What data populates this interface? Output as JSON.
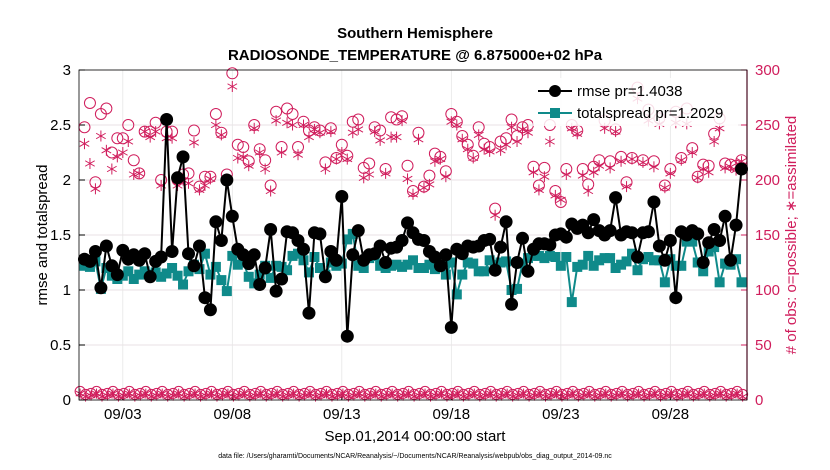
{
  "chart_data": {
    "type": "line",
    "title_line1": "Southern Hemisphere",
    "title_line2": "RADIOSONDE_TEMPERATURE @ 6.875000e+02 hPa",
    "xlabel": "Sep.01,2014 00:00:00 start",
    "ylabel_left": "rmse and totalspread",
    "ylabel_right": "# of obs: o=possible; ∗=assimilated",
    "footnote": "data file: /Users/gharamti/Documents/NCAR/Reanalysis/~/Documents/NCAR/Reanalysis/webpub/obs_diag_output_2014-09.nc",
    "xlim": [
      1,
      31.5
    ],
    "ylim_left": [
      0,
      3
    ],
    "ylim_right": [
      0,
      300
    ],
    "xticks": [
      3,
      8,
      13,
      18,
      23,
      28
    ],
    "xtick_labels": [
      "09/03",
      "09/08",
      "09/13",
      "09/18",
      "09/23",
      "09/28"
    ],
    "yticks_left": [
      0,
      0.5,
      1,
      1.5,
      2,
      2.5,
      3
    ],
    "ytick_labels_left": [
      "0",
      "0.5",
      "1",
      "1.5",
      "2",
      "2.5",
      "3"
    ],
    "yticks_right": [
      0,
      50,
      100,
      150,
      200,
      250,
      300
    ],
    "ytick_labels_right": [
      "0",
      "50",
      "100",
      "150",
      "200",
      "250",
      "300"
    ],
    "colors": {
      "rmse": "#000000",
      "spread": "#0f8a8a",
      "obs": "#d01d5c",
      "axis": "#000000"
    },
    "legend": {
      "position": "top-right",
      "entries": [
        "rmse pr=1.4038",
        "totalspread pr=1.2029"
      ]
    },
    "x": [
      1.25,
      1.5,
      1.75,
      2.0,
      2.25,
      2.5,
      2.75,
      3.0,
      3.25,
      3.5,
      3.75,
      4.0,
      4.25,
      4.5,
      4.75,
      5.0,
      5.25,
      5.5,
      5.75,
      6.0,
      6.25,
      6.5,
      6.75,
      7.0,
      7.25,
      7.5,
      7.75,
      8.0,
      8.25,
      8.5,
      8.75,
      9.0,
      9.25,
      9.5,
      9.75,
      10.0,
      10.25,
      10.5,
      10.75,
      11.0,
      11.25,
      11.5,
      11.75,
      12.0,
      12.25,
      12.5,
      12.75,
      13.0,
      13.25,
      13.5,
      13.75,
      14.0,
      14.25,
      14.5,
      14.75,
      15.0,
      15.25,
      15.5,
      15.75,
      16.0,
      16.25,
      16.5,
      16.75,
      17.0,
      17.25,
      17.5,
      17.75,
      18.0,
      18.25,
      18.5,
      18.75,
      19.0,
      19.25,
      19.5,
      19.75,
      20.0,
      20.25,
      20.5,
      20.75,
      21.0,
      21.25,
      21.5,
      21.75,
      22.0,
      22.25,
      22.5,
      22.75,
      23.0,
      23.25,
      23.5,
      23.75,
      24.0,
      24.25,
      24.5,
      24.75,
      25.0,
      25.25,
      25.5,
      25.75,
      26.0,
      26.25,
      26.5,
      26.75,
      27.0,
      27.25,
      27.5,
      27.75,
      28.0,
      28.25,
      28.5,
      28.75,
      29.0,
      29.25,
      29.5,
      29.75,
      30.0,
      30.25,
      30.5,
      30.75,
      31.0,
      31.25
    ],
    "series": [
      {
        "name": "rmse",
        "values": [
          1.28,
          1.26,
          1.35,
          1.02,
          1.4,
          1.22,
          1.14,
          1.36,
          1.28,
          1.32,
          1.27,
          1.33,
          1.12,
          1.26,
          1.3,
          2.55,
          1.35,
          2.02,
          2.21,
          1.33,
          1.22,
          1.4,
          0.93,
          0.82,
          1.62,
          1.45,
          2.0,
          1.67,
          1.37,
          1.32,
          1.24,
          1.32,
          1.05,
          1.2,
          1.55,
          0.99,
          1.1,
          1.53,
          1.52,
          1.45,
          1.37,
          0.79,
          1.52,
          1.51,
          1.12,
          1.35,
          1.27,
          1.85,
          0.58,
          1.32,
          1.54,
          1.27,
          1.32,
          1.33,
          1.4,
          1.25,
          1.38,
          1.39,
          1.45,
          1.61,
          1.52,
          1.46,
          1.45,
          1.35,
          1.3,
          1.22,
          1.32,
          0.66,
          1.37,
          1.33,
          1.4,
          1.39,
          1.4,
          1.45,
          1.46,
          1.18,
          1.39,
          1.62,
          0.87,
          1.25,
          1.47,
          1.17,
          1.37,
          1.42,
          1.42,
          1.41,
          1.5,
          1.51,
          1.48,
          1.6,
          1.56,
          1.59,
          1.52,
          1.64,
          1.54,
          1.5,
          1.54,
          1.84,
          1.5,
          1.53,
          1.52,
          1.3,
          1.52,
          1.53,
          1.8,
          1.4,
          1.27,
          1.45,
          0.93,
          1.53,
          1.5,
          1.54,
          1.51,
          1.25,
          1.43,
          1.55,
          1.45,
          1.67,
          1.27,
          1.59,
          2.1
        ]
      },
      {
        "name": "totalspread",
        "values": [
          1.22,
          1.21,
          1.26,
          1.01,
          1.2,
          1.13,
          1.1,
          1.13,
          1.17,
          1.1,
          1.14,
          1.17,
          1.14,
          1.16,
          1.12,
          1.15,
          1.2,
          1.13,
          1.05,
          1.17,
          1.23,
          1.19,
          1.33,
          1.14,
          1.21,
          1.09,
          0.99,
          1.31,
          1.23,
          1.25,
          1.12,
          1.06,
          1.14,
          1.22,
          1.11,
          1.22,
          1.21,
          1.18,
          1.31,
          1.33,
          1.27,
          1.16,
          1.3,
          1.2,
          1.14,
          1.25,
          1.22,
          1.24,
          1.46,
          1.51,
          1.22,
          1.2,
          1.29,
          1.31,
          1.22,
          1.2,
          1.22,
          1.23,
          1.21,
          1.23,
          1.27,
          1.2,
          1.2,
          1.23,
          1.19,
          1.22,
          1.14,
          1.25,
          0.96,
          1.14,
          1.25,
          1.24,
          1.17,
          1.17,
          1.27,
          1.23,
          1.25,
          1.26,
          1.0,
          1.01,
          1.24,
          1.29,
          1.31,
          1.31,
          1.29,
          1.31,
          1.3,
          1.22,
          1.3,
          0.89,
          1.21,
          1.23,
          1.31,
          1.22,
          1.27,
          1.29,
          1.29,
          1.2,
          1.23,
          1.26,
          1.33,
          1.18,
          1.28,
          1.3,
          1.27,
          1.27,
          1.07,
          1.28,
          1.22,
          1.22,
          1.44,
          1.44,
          1.25,
          1.17,
          1.35,
          1.39,
          1.07,
          1.24,
          1.23,
          1.28,
          1.07
        ]
      },
      {
        "name": "obs_possible",
        "values": [
          248,
          270,
          198,
          260,
          265,
          225,
          238,
          238,
          250,
          218,
          206,
          244,
          244,
          252,
          200,
          244,
          244,
          200,
          205,
          206,
          245,
          194,
          203,
          203,
          260,
          243,
          205,
          297,
          232,
          230,
          217,
          250,
          228,
          218,
          195,
          262,
          230,
          265,
          260,
          230,
          253,
          245,
          248,
          245,
          216,
          247,
          220,
          232,
          222,
          253,
          255,
          211,
          215,
          248,
          245,
          210,
          257,
          255,
          258,
          213,
          190,
          243,
          194,
          204,
          224,
          221,
          208,
          260,
          253,
          240,
          232,
          222,
          248,
          233,
          230,
          174,
          235,
          238,
          255,
          240,
          248,
          250,
          212,
          195,
          211,
          250,
          190,
          180,
          210,
          250,
          245,
          210,
          196,
          212,
          218,
          254,
          217,
          246,
          221,
          198,
          220,
          284,
          218,
          264,
          217,
          256,
          195,
          210,
          262,
          220,
          265,
          229,
          203,
          214,
          213,
          242,
          256,
          215,
          214,
          213,
          218
        ]
      },
      {
        "name": "obs_assimilated",
        "values": [
          233,
          215,
          192,
          240,
          227,
          210,
          221,
          225,
          235,
          205,
          206,
          244,
          239,
          244,
          195,
          238,
          238,
          195,
          200,
          197,
          234,
          191,
          195,
          201,
          250,
          241,
          201,
          285,
          220,
          221,
          213,
          247,
          225,
          210,
          190,
          254,
          225,
          252,
          250,
          223,
          250,
          239,
          246,
          243,
          210,
          244,
          219,
          225,
          219,
          243,
          246,
          202,
          205,
          244,
          236,
          206,
          239,
          239,
          254,
          201,
          187,
          237,
          193,
          196,
          217,
          219,
          203,
          253,
          250,
          237,
          228,
          220,
          241,
          228,
          226,
          168,
          227,
          232,
          248,
          235,
          246,
          243,
          207,
          191,
          203,
          235,
          186,
          182,
          205,
          247,
          242,
          204,
          190,
          207,
          213,
          247,
          211,
          244,
          217,
          194,
          219,
          274,
          216,
          254,
          212,
          251,
          193,
          206,
          252,
          218,
          251,
          225,
          202,
          210,
          207,
          235,
          247,
          211,
          212,
          209,
          217
        ]
      }
    ],
    "obs_possible_bottom_values": [
      6
    ],
    "obs_assimilated_bottom_values": [
      4
    ]
  }
}
